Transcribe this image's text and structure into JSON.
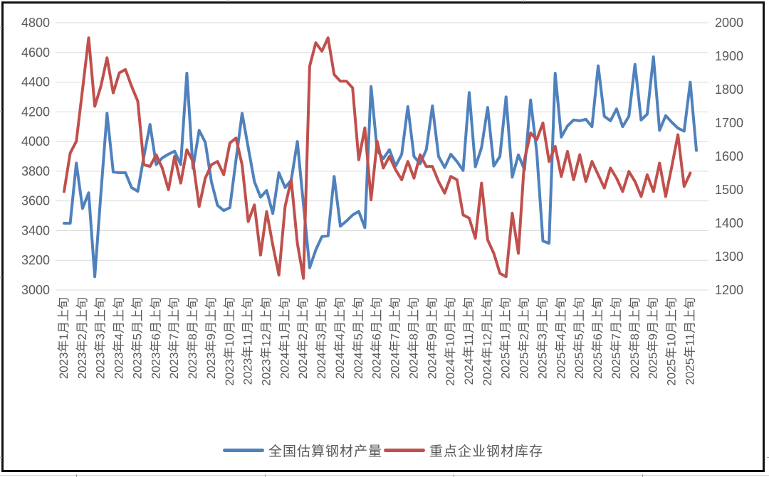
{
  "chart_data": {
    "type": "line",
    "title": "",
    "x_label_note": "ticks mark the 上旬 label of each month; series contain 3 points per month (上旬/中旬/下旬)",
    "x_labels": [
      "2023年1月上旬",
      "2023年2月上旬",
      "2023年3月上旬",
      "2023年4月上旬",
      "2023年5月上旬",
      "2023年6月上旬",
      "2023年7月上旬",
      "2023年8月上旬",
      "2023年9月上旬",
      "2023年10月上旬",
      "2023年11月上旬",
      "2023年12月上旬",
      "2024年1月上旬",
      "2024年2月上旬",
      "2024年3月上旬",
      "2024年4月上旬",
      "2024年5月上旬",
      "2024年6月上旬",
      "2024年7月上旬",
      "2024年8月上旬",
      "2024年9月上旬",
      "2024年10月上旬",
      "2024年11月上旬",
      "2024年12月上旬",
      "2025年1月上旬",
      "2025年2月上旬",
      "2025年3月上旬",
      "2025年4月上旬",
      "2025年5月上旬",
      "2025年6月上旬",
      "2025年7月上旬",
      "2025年8月上旬",
      "2025年9月上旬",
      "2025年10月上旬",
      "2025年11月上旬"
    ],
    "points_per_month": 3,
    "left_axis": {
      "min": 3000,
      "max": 4800,
      "step": 200,
      "ticks": [
        "4800",
        "4600",
        "4400",
        "4200",
        "4000",
        "3800",
        "3600",
        "3400",
        "3200",
        "3000"
      ]
    },
    "right_axis": {
      "min": 1200,
      "max": 2000,
      "step": 100,
      "ticks": [
        "2000",
        "1900",
        "1800",
        "1700",
        "1600",
        "1500",
        "1400",
        "1300",
        "1200"
      ]
    },
    "grid": true,
    "legend_position": "bottom",
    "series": [
      {
        "name": "全国估算钢材产量",
        "axis": "left",
        "color": "#4F81BD",
        "values": [
          3450,
          3450,
          3855,
          3550,
          3655,
          3090,
          3650,
          4190,
          3795,
          3790,
          3790,
          3690,
          3665,
          3900,
          4115,
          3845,
          3890,
          3915,
          3935,
          3845,
          4460,
          3820,
          4075,
          3995,
          3730,
          3570,
          3535,
          3555,
          3875,
          4190,
          3960,
          3730,
          3625,
          3670,
          3515,
          3790,
          3690,
          3740,
          4000,
          3575,
          3150,
          3270,
          3360,
          3365,
          3765,
          3430,
          3465,
          3505,
          3530,
          3420,
          4370,
          3940,
          3885,
          3945,
          3835,
          3915,
          4235,
          3900,
          3850,
          3945,
          4240,
          3900,
          3825,
          3915,
          3865,
          3805,
          4330,
          3830,
          3960,
          4230,
          3835,
          3900,
          4300,
          3760,
          3910,
          3810,
          4280,
          3930,
          3330,
          3315,
          4460,
          4030,
          4105,
          4145,
          4140,
          4150,
          4100,
          4510,
          4170,
          4140,
          4220,
          4100,
          4170,
          4520,
          4145,
          4185,
          4570,
          4075,
          4175,
          4130,
          4090,
          4070,
          4400,
          3940
        ]
      },
      {
        "name": "重点企业钢材库存",
        "axis": "right",
        "color": "#C0504D",
        "values": [
          1495,
          1610,
          1645,
          1800,
          1955,
          1750,
          1810,
          1895,
          1790,
          1850,
          1860,
          1810,
          1765,
          1575,
          1570,
          1605,
          1565,
          1500,
          1600,
          1520,
          1620,
          1585,
          1450,
          1535,
          1575,
          1585,
          1545,
          1640,
          1655,
          1575,
          1405,
          1455,
          1305,
          1435,
          1335,
          1245,
          1450,
          1530,
          1340,
          1235,
          1870,
          1940,
          1915,
          1955,
          1845,
          1825,
          1825,
          1805,
          1590,
          1685,
          1470,
          1645,
          1565,
          1600,
          1560,
          1530,
          1585,
          1535,
          1605,
          1570,
          1570,
          1525,
          1490,
          1540,
          1530,
          1425,
          1415,
          1355,
          1520,
          1350,
          1310,
          1250,
          1240,
          1430,
          1310,
          1590,
          1670,
          1650,
          1700,
          1585,
          1630,
          1540,
          1615,
          1530,
          1605,
          1525,
          1585,
          1545,
          1505,
          1565,
          1535,
          1495,
          1555,
          1525,
          1480,
          1545,
          1495,
          1580,
          1480,
          1570,
          1665,
          1510,
          1550
        ]
      }
    ]
  }
}
